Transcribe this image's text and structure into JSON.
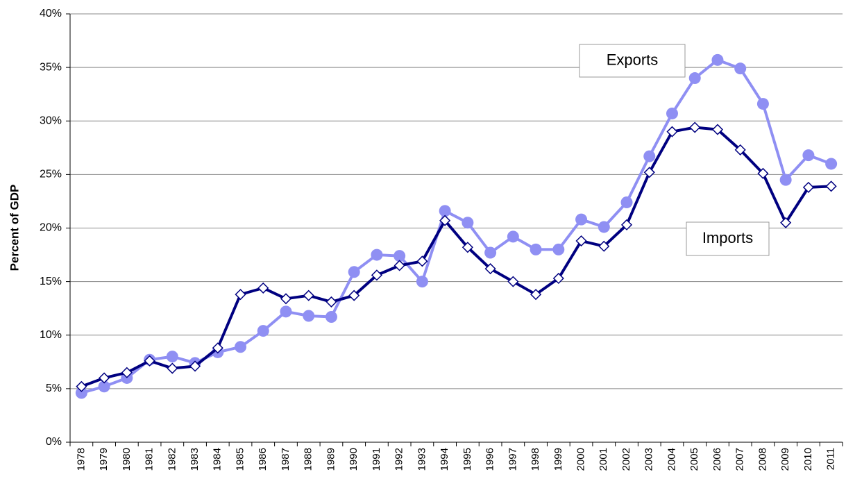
{
  "chart_data": {
    "type": "line",
    "y_label": "Percent of GDP",
    "categories": [
      "1978",
      "1979",
      "1980",
      "1981",
      "1982",
      "1983",
      "1984",
      "1985",
      "1986",
      "1987",
      "1988",
      "1989",
      "1990",
      "1991",
      "1992",
      "1993",
      "1994",
      "1995",
      "1996",
      "1997",
      "1998",
      "1999",
      "2000",
      "2001",
      "2002",
      "2003",
      "2004",
      "2005",
      "2006",
      "2007",
      "2008",
      "2009",
      "2010",
      "2011"
    ],
    "series": [
      {
        "name": "Exports",
        "color": "#8f8ff3",
        "marker": "circle",
        "values": [
          4.6,
          5.2,
          6.0,
          7.7,
          8.0,
          7.4,
          8.4,
          8.9,
          10.4,
          12.2,
          11.8,
          11.7,
          15.9,
          17.5,
          17.4,
          15.0,
          21.6,
          20.5,
          17.7,
          19.2,
          18.0,
          18.0,
          20.8,
          20.1,
          22.4,
          26.7,
          30.7,
          34.0,
          35.7,
          34.9,
          31.6,
          24.5,
          26.8,
          26.0
        ]
      },
      {
        "name": "Imports",
        "color": "#000080",
        "marker": "diamond",
        "values": [
          5.2,
          6.0,
          6.5,
          7.6,
          6.9,
          7.1,
          8.8,
          13.8,
          14.4,
          13.4,
          13.7,
          13.1,
          13.7,
          15.6,
          16.5,
          16.9,
          20.7,
          18.2,
          16.2,
          15.0,
          13.8,
          15.3,
          18.8,
          18.3,
          20.3,
          25.2,
          29.0,
          29.4,
          29.2,
          27.3,
          25.1,
          20.5,
          23.8,
          23.9
        ]
      }
    ],
    "ylim": [
      0,
      40
    ],
    "yticks": [
      {
        "value": 0,
        "label": "0%"
      },
      {
        "value": 5,
        "label": "5%"
      },
      {
        "value": 10,
        "label": "10%"
      },
      {
        "value": 15,
        "label": "15%"
      },
      {
        "value": 20,
        "label": "20%"
      },
      {
        "value": 25,
        "label": "25%"
      },
      {
        "value": 30,
        "label": "30%"
      },
      {
        "value": 35,
        "label": "35%"
      },
      {
        "value": 40,
        "label": "40%"
      }
    ],
    "grid": true
  }
}
